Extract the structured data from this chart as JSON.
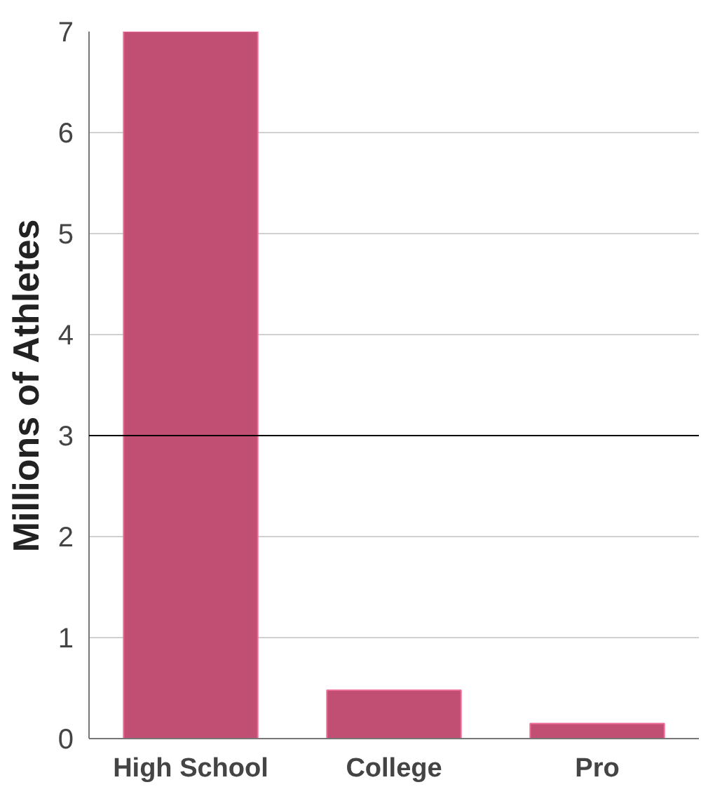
{
  "chart_data": {
    "type": "bar",
    "ylabel": "Millions of Athletes",
    "categories": [
      "High School",
      "College",
      "Pro"
    ],
    "values": [
      7.0,
      0.48,
      0.15
    ],
    "color": "#c14f74",
    "ylim": [
      0,
      7
    ],
    "yticks": [
      0,
      1,
      2,
      3,
      4,
      5,
      6,
      7
    ],
    "grid": "y",
    "ref_lines": [
      {
        "axis": "y",
        "value": 3,
        "color": "#000000"
      }
    ]
  }
}
